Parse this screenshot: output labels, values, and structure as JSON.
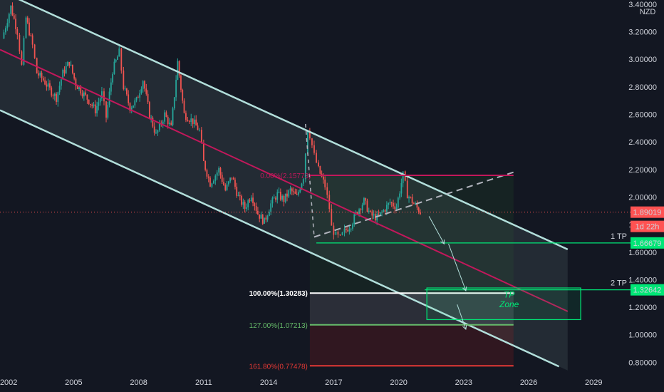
{
  "chart_data": {
    "type": "candlestick",
    "currency": "NZD",
    "last_price": "1.89019",
    "countdown": "1d 22h",
    "y_ticks": [
      "3.40000",
      "3.20000",
      "3.00000",
      "2.80000",
      "2.60000",
      "2.40000",
      "2.20000",
      "2.00000",
      "1.80000",
      "1.60000",
      "1.40000",
      "1.20000",
      "1.00000",
      "0.80000"
    ],
    "y_tick_values": [
      3.4,
      3.2,
      3.0,
      2.8,
      2.6,
      2.4,
      2.2,
      2.0,
      1.8,
      1.6,
      1.4,
      1.2,
      1.0,
      0.8
    ],
    "x_ticks": [
      "2002",
      "2005",
      "2008",
      "2011",
      "2014",
      "2017",
      "2020",
      "2023",
      "2026",
      "2029"
    ],
    "x_tick_values": [
      2002,
      2005,
      2008,
      2011,
      2014,
      2017,
      2020,
      2023,
      2026,
      2029
    ],
    "ylim": [
      0.74,
      3.43
    ],
    "xlim": [
      2001.6,
      2030.7
    ],
    "price_path": [
      [
        2001.7,
        3.15
      ],
      [
        2002.1,
        3.38
      ],
      [
        2002.4,
        3.2
      ],
      [
        2002.6,
        2.95
      ],
      [
        2002.8,
        3.3
      ],
      [
        2003.1,
        3.1
      ],
      [
        2003.3,
        2.9
      ],
      [
        2003.6,
        2.85
      ],
      [
        2003.9,
        2.78
      ],
      [
        2004.2,
        2.72
      ],
      [
        2004.5,
        2.9
      ],
      [
        2004.8,
        2.98
      ],
      [
        2005.1,
        2.82
      ],
      [
        2005.4,
        2.76
      ],
      [
        2005.7,
        2.7
      ],
      [
        2006.0,
        2.63
      ],
      [
        2006.3,
        2.75
      ],
      [
        2006.5,
        2.58
      ],
      [
        2006.8,
        2.92
      ],
      [
        2007.1,
        3.05
      ],
      [
        2007.3,
        2.8
      ],
      [
        2007.6,
        2.65
      ],
      [
        2007.9,
        2.7
      ],
      [
        2008.2,
        2.85
      ],
      [
        2008.5,
        2.6
      ],
      [
        2008.8,
        2.45
      ],
      [
        2009.2,
        2.6
      ],
      [
        2009.5,
        2.5
      ],
      [
        2009.8,
        2.98
      ],
      [
        2010.1,
        2.6
      ],
      [
        2010.5,
        2.55
      ],
      [
        2010.8,
        2.48
      ],
      [
        2011.0,
        2.25
      ],
      [
        2011.3,
        2.1
      ],
      [
        2011.7,
        2.2
      ],
      [
        2012.0,
        2.05
      ],
      [
        2012.3,
        2.15
      ],
      [
        2012.6,
        2.0
      ],
      [
        2012.9,
        1.92
      ],
      [
        2013.2,
        2.02
      ],
      [
        2013.5,
        1.88
      ],
      [
        2013.8,
        1.82
      ],
      [
        2014.1,
        1.95
      ],
      [
        2014.4,
        2.02
      ],
      [
        2014.7,
        1.98
      ],
      [
        2015.0,
        2.05
      ],
      [
        2015.3,
        2.0
      ],
      [
        2015.6,
        2.15
      ],
      [
        2015.8,
        2.5
      ],
      [
        2015.9,
        2.45
      ],
      [
        2016.1,
        2.3
      ],
      [
        2016.3,
        2.2
      ],
      [
        2016.6,
        2.08
      ],
      [
        2016.8,
        1.92
      ],
      [
        2016.9,
        1.78
      ],
      [
        2017.1,
        1.72
      ],
      [
        2017.3,
        1.7
      ],
      [
        2017.5,
        1.75
      ],
      [
        2017.8,
        1.8
      ],
      [
        2018.1,
        1.9
      ],
      [
        2018.4,
        1.97
      ],
      [
        2018.7,
        1.87
      ],
      [
        2019.0,
        1.85
      ],
      [
        2019.3,
        1.9
      ],
      [
        2019.6,
        1.96
      ],
      [
        2019.9,
        1.93
      ],
      [
        2020.2,
        2.16
      ],
      [
        2020.4,
        2.02
      ],
      [
        2020.7,
        1.95
      ],
      [
        2021.0,
        1.89
      ]
    ],
    "channel": {
      "upper": [
        [
          2002.4,
          3.44
        ],
        [
          2027.8,
          1.62
        ]
      ],
      "middle": [
        [
          2001.6,
          3.07
        ],
        [
          2027.8,
          1.17
        ]
      ],
      "lower": [
        [
          2001.6,
          2.63
        ],
        [
          2027.4,
          0.77
        ]
      ]
    },
    "fib_levels": [
      {
        "label": "0.00%(2.15773)",
        "value": 2.15773
      },
      {
        "label": "100.00%(1.30283)",
        "value": 1.30283
      },
      {
        "label": "127.00%(1.07213)",
        "value": 1.07213
      },
      {
        "label": "161.80%(0.77478)",
        "value": 0.77478
      }
    ],
    "targets": [
      {
        "name": "1 TP",
        "price": "1.66679",
        "value": 1.66679
      },
      {
        "name": "2 TP",
        "price": "1.32642",
        "value": 1.32642
      }
    ],
    "tp_zone": {
      "label_line1": "TP",
      "label_line2": "Zone",
      "x0": 2021.3,
      "x1": 2028.4,
      "top": 1.34,
      "bottom": 1.11
    },
    "trendline_dashed": [
      [
        2016.1,
        1.71
      ],
      [
        2025.3,
        2.18
      ]
    ],
    "drop_dashed": [
      [
        2015.7,
        2.53
      ],
      [
        2016.1,
        1.71
      ]
    ],
    "projection_arrows": [
      [
        [
          2021.4,
          1.86
        ],
        [
          2022.1,
          1.66
        ]
      ],
      [
        [
          2022.3,
          1.66
        ],
        [
          2023.1,
          1.32
        ]
      ],
      [
        [
          2022.7,
          1.22
        ],
        [
          2023.1,
          1.04
        ]
      ]
    ],
    "colors": {
      "background": "#131722",
      "channel": "#b2dfdb",
      "midline": "#c2185b",
      "target_green": "#00e676",
      "fib_white": "#ffffff",
      "fib_green": "#4caf50",
      "fib_red": "#d32f2f",
      "last_price": "#ff5252",
      "bull": "#26a69a",
      "bear": "#ef5350"
    }
  }
}
